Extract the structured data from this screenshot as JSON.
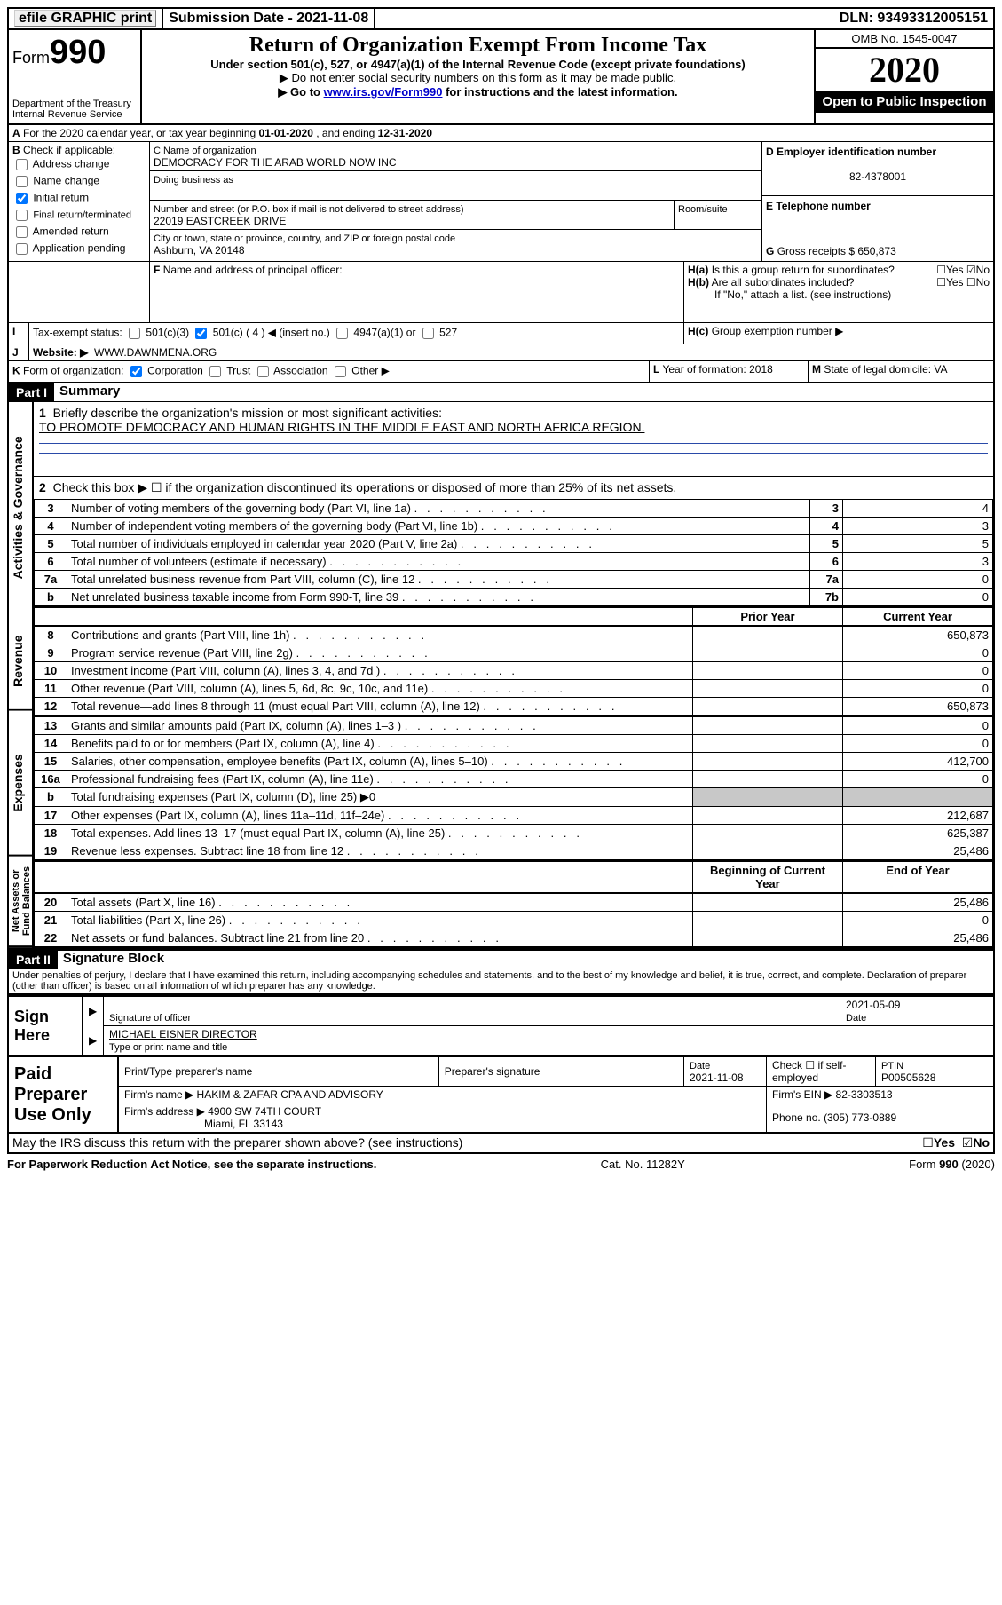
{
  "topbar": {
    "efile": "efile GRAPHIC print",
    "subdate_lbl": "Submission Date - ",
    "subdate": "2021-11-08",
    "dln_lbl": "DLN: ",
    "dln": "93493312005151"
  },
  "header": {
    "form": "Form",
    "form_no": "990",
    "dept": "Department of the Treasury\nInternal Revenue Service",
    "title": "Return of Organization Exempt From Income Tax",
    "sub1": "Under section 501(c), 527, or 4947(a)(1) of the Internal Revenue Code (except private foundations)",
    "sub2": "▶ Do not enter social security numbers on this form as it may be made public.",
    "sub3_pre": "▶ Go to ",
    "sub3_link": "www.irs.gov/Form990",
    "sub3_post": " for instructions and the latest information.",
    "omb": "OMB No. 1545-0047",
    "year": "2020",
    "open": "Open to Public Inspection"
  },
  "A": {
    "text": "For the 2020 calendar year, or tax year beginning ",
    "begin": "01-01-2020",
    "mid": " , and ending ",
    "end": "12-31-2020"
  },
  "B": {
    "label": "B",
    "check_if": "Check if applicable:",
    "addr_change": "Address change",
    "name_change": "Name change",
    "initial": "Initial return",
    "final": "Final return/terminated",
    "amended": "Amended return",
    "app_pending": "Application pending"
  },
  "C": {
    "name_lbl": "C Name of organization",
    "name": "DEMOCRACY FOR THE ARAB WORLD NOW INC",
    "dba_lbl": "Doing business as",
    "dba": "",
    "street_lbl": "Number and street (or P.O. box if mail is not delivered to street address)",
    "room_lbl": "Room/suite",
    "street": "22019 EASTCREEK DRIVE",
    "city_lbl": "City or town, state or province, country, and ZIP or foreign postal code",
    "city": "Ashburn, VA  20148"
  },
  "D": {
    "lbl": "D Employer identification number",
    "val": "82-4378001"
  },
  "E": {
    "lbl": "E Telephone number",
    "val": ""
  },
  "G": {
    "lbl": "G",
    "text": "Gross receipts $ ",
    "val": "650,873"
  },
  "F": {
    "lbl": "F",
    "text": "Name and address of principal officer:"
  },
  "H": {
    "ha": "Is this a group return for subordinates?",
    "hb": "Are all subordinates included?",
    "hb_note": "If \"No,\" attach a list. (see instructions)",
    "hc": "Group exemption number ▶",
    "yes": "Yes",
    "no": "No"
  },
  "I": {
    "lbl": "Tax-exempt status:",
    "c3": "501(c)(3)",
    "c4": "501(c) ( 4 ) ◀ (insert no.)",
    "a1": "4947(a)(1) or",
    "s527": "527"
  },
  "J": {
    "lbl": "Website: ▶",
    "val": "WWW.DAWNMENA.ORG"
  },
  "K": {
    "lbl": "Form of organization:",
    "corp": "Corporation",
    "trust": "Trust",
    "assoc": "Association",
    "other": "Other ▶"
  },
  "L": {
    "lbl": "Year of formation: ",
    "val": "2018"
  },
  "M": {
    "lbl": "State of legal domicile: ",
    "val": "VA"
  },
  "part1": {
    "hdr": "Part I",
    "title": "Summary"
  },
  "mission_lbl": "Briefly describe the organization's mission or most significant activities:",
  "mission": "TO PROMOTE DEMOCRACY AND HUMAN RIGHTS IN THE MIDDLE EAST AND NORTH AFRICA REGION.",
  "line2": "Check this box ▶ ☐ if the organization discontinued its operations or disposed of more than 25% of its net assets.",
  "gov": {
    "label": "Activities & Governance",
    "rows": [
      {
        "n": "3",
        "t": "Number of voting members of the governing body (Part VI, line 1a)",
        "k": "3",
        "v": "4"
      },
      {
        "n": "4",
        "t": "Number of independent voting members of the governing body (Part VI, line 1b)",
        "k": "4",
        "v": "3"
      },
      {
        "n": "5",
        "t": "Total number of individuals employed in calendar year 2020 (Part V, line 2a)",
        "k": "5",
        "v": "5"
      },
      {
        "n": "6",
        "t": "Total number of volunteers (estimate if necessary)",
        "k": "6",
        "v": "3"
      },
      {
        "n": "7a",
        "t": "Total unrelated business revenue from Part VIII, column (C), line 12",
        "k": "7a",
        "v": "0"
      },
      {
        "n": " b",
        "t": "Net unrelated business taxable income from Form 990-T, line 39",
        "k": "7b",
        "v": "0"
      }
    ]
  },
  "rev": {
    "label": "Revenue",
    "hdr_prior": "Prior Year",
    "hdr_cur": "Current Year",
    "rows": [
      {
        "n": "8",
        "t": "Contributions and grants (Part VIII, line 1h)",
        "p": "",
        "c": "650,873"
      },
      {
        "n": "9",
        "t": "Program service revenue (Part VIII, line 2g)",
        "p": "",
        "c": "0"
      },
      {
        "n": "10",
        "t": "Investment income (Part VIII, column (A), lines 3, 4, and 7d )",
        "p": "",
        "c": "0"
      },
      {
        "n": "11",
        "t": "Other revenue (Part VIII, column (A), lines 5, 6d, 8c, 9c, 10c, and 11e)",
        "p": "",
        "c": "0"
      },
      {
        "n": "12",
        "t": "Total revenue—add lines 8 through 11 (must equal Part VIII, column (A), line 12)",
        "p": "",
        "c": "650,873"
      }
    ]
  },
  "exp": {
    "label": "Expenses",
    "rows": [
      {
        "n": "13",
        "t": "Grants and similar amounts paid (Part IX, column (A), lines 1–3 )",
        "p": "",
        "c": "0"
      },
      {
        "n": "14",
        "t": "Benefits paid to or for members (Part IX, column (A), line 4)",
        "p": "",
        "c": "0"
      },
      {
        "n": "15",
        "t": "Salaries, other compensation, employee benefits (Part IX, column (A), lines 5–10)",
        "p": "",
        "c": "412,700"
      },
      {
        "n": "16a",
        "t": "Professional fundraising fees (Part IX, column (A), line 11e)",
        "p": "",
        "c": "0"
      },
      {
        "n": "b",
        "t": "Total fundraising expenses (Part IX, column (D), line 25) ▶0",
        "p": "GREY",
        "c": "GREY"
      },
      {
        "n": "17",
        "t": "Other expenses (Part IX, column (A), lines 11a–11d, 11f–24e)",
        "p": "",
        "c": "212,687"
      },
      {
        "n": "18",
        "t": "Total expenses. Add lines 13–17 (must equal Part IX, column (A), line 25)",
        "p": "",
        "c": "625,387"
      },
      {
        "n": "19",
        "t": "Revenue less expenses. Subtract line 18 from line 12",
        "p": "",
        "c": "25,486"
      }
    ]
  },
  "net": {
    "label": "Net Assets or Fund Balances",
    "hdr_begin": "Beginning of Current Year",
    "hdr_end": "End of Year",
    "rows": [
      {
        "n": "20",
        "t": "Total assets (Part X, line 16)",
        "b": "",
        "e": "25,486"
      },
      {
        "n": "21",
        "t": "Total liabilities (Part X, line 26)",
        "b": "",
        "e": "0"
      },
      {
        "n": "22",
        "t": "Net assets or fund balances. Subtract line 21 from line 20",
        "b": "",
        "e": "25,486"
      }
    ]
  },
  "part2": {
    "hdr": "Part II",
    "title": "Signature Block"
  },
  "perjury": "Under penalties of perjury, I declare that I have examined this return, including accompanying schedules and statements, and to the best of my knowledge and belief, it is true, correct, and complete. Declaration of preparer (other than officer) is based on all information of which preparer has any knowledge.",
  "sign": {
    "here": "Sign Here",
    "sig_lbl": "Signature of officer",
    "date_lbl": "Date",
    "date": "2021-05-09",
    "name": "MICHAEL EISNER  DIRECTOR",
    "name_lbl": "Type or print name and title"
  },
  "paid": {
    "here": "Paid Preparer Use Only",
    "pt_name": "Print/Type preparer's name",
    "pt_sig": "Preparer's signature",
    "pt_date_lbl": "Date",
    "pt_date": "2021-11-08",
    "check_se": "Check ☐ if self-employed",
    "ptin_lbl": "PTIN",
    "ptin": "P00505628",
    "firm_name_lbl": "Firm's name   ▶ ",
    "firm_name": "HAKIM & ZAFAR CPA AND ADVISORY",
    "firm_ein_lbl": "Firm's EIN ▶ ",
    "firm_ein": "82-3303513",
    "firm_addr_lbl": "Firm's address ▶ ",
    "firm_addr1": "4900 SW 74TH COURT",
    "firm_addr2": "Miami, FL  33143",
    "phone_lbl": "Phone no. ",
    "phone": "(305) 773-0889"
  },
  "discuss": "May the IRS discuss this return with the preparer shown above? (see instructions)",
  "footer": {
    "pra": "For Paperwork Reduction Act Notice, see the separate instructions.",
    "cat": "Cat. No. 11282Y",
    "form": "Form 990 (2020)"
  }
}
